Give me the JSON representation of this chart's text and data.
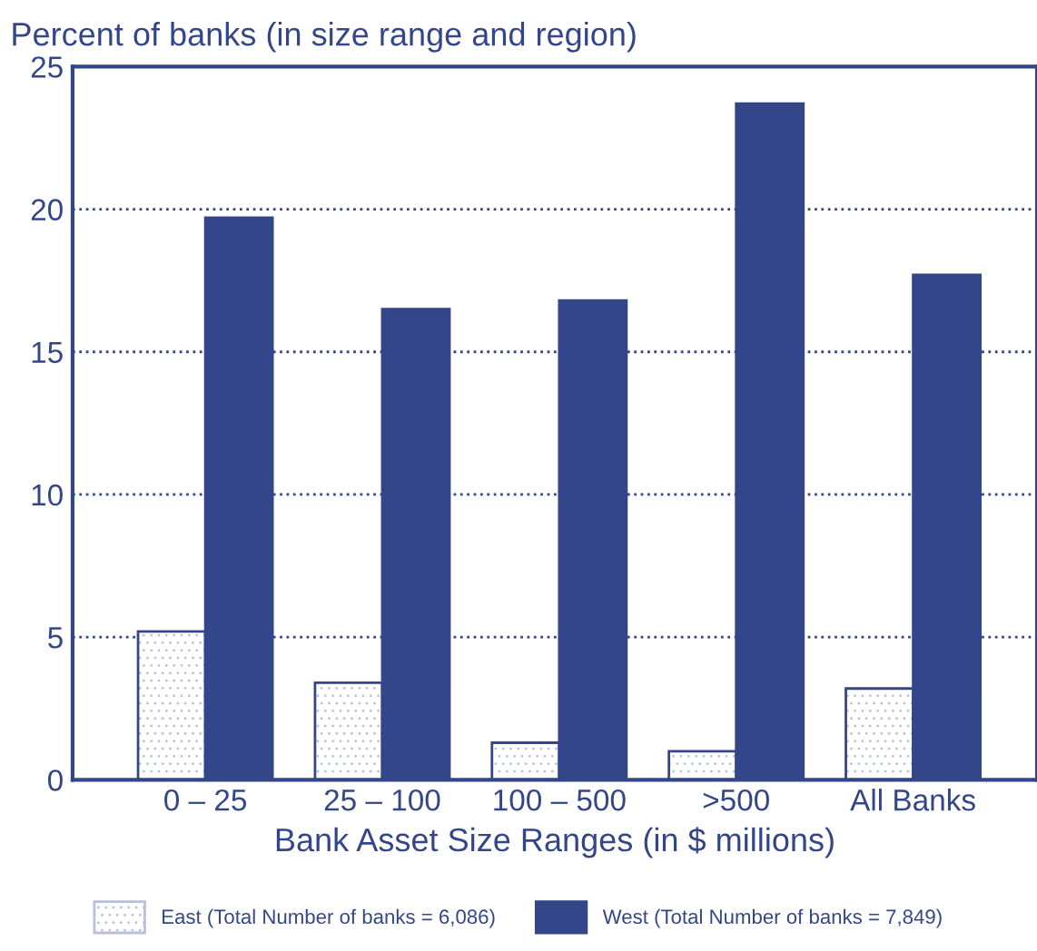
{
  "chart_data": {
    "type": "bar",
    "ylabel": "Percent of banks (in size range and region)",
    "xlabel": "Bank Asset Size Ranges (in $ millions)",
    "categories": [
      "0 – 25",
      "25 – 100",
      "100 – 500",
      ">500",
      "All Banks"
    ],
    "series": [
      {
        "name": "East (Total Number of banks = 6,086)",
        "color": "#ffffff",
        "values": [
          5.2,
          3.4,
          1.3,
          1.0,
          3.2
        ]
      },
      {
        "name": "West (Total Number of banks = 7,849)",
        "color": "#34468a",
        "values": [
          19.7,
          16.5,
          16.8,
          23.7,
          17.7
        ]
      }
    ],
    "ylim": [
      0,
      25
    ],
    "yticks": [
      0,
      5,
      10,
      15,
      20,
      25
    ],
    "grid": "y",
    "legend": "bottom"
  }
}
